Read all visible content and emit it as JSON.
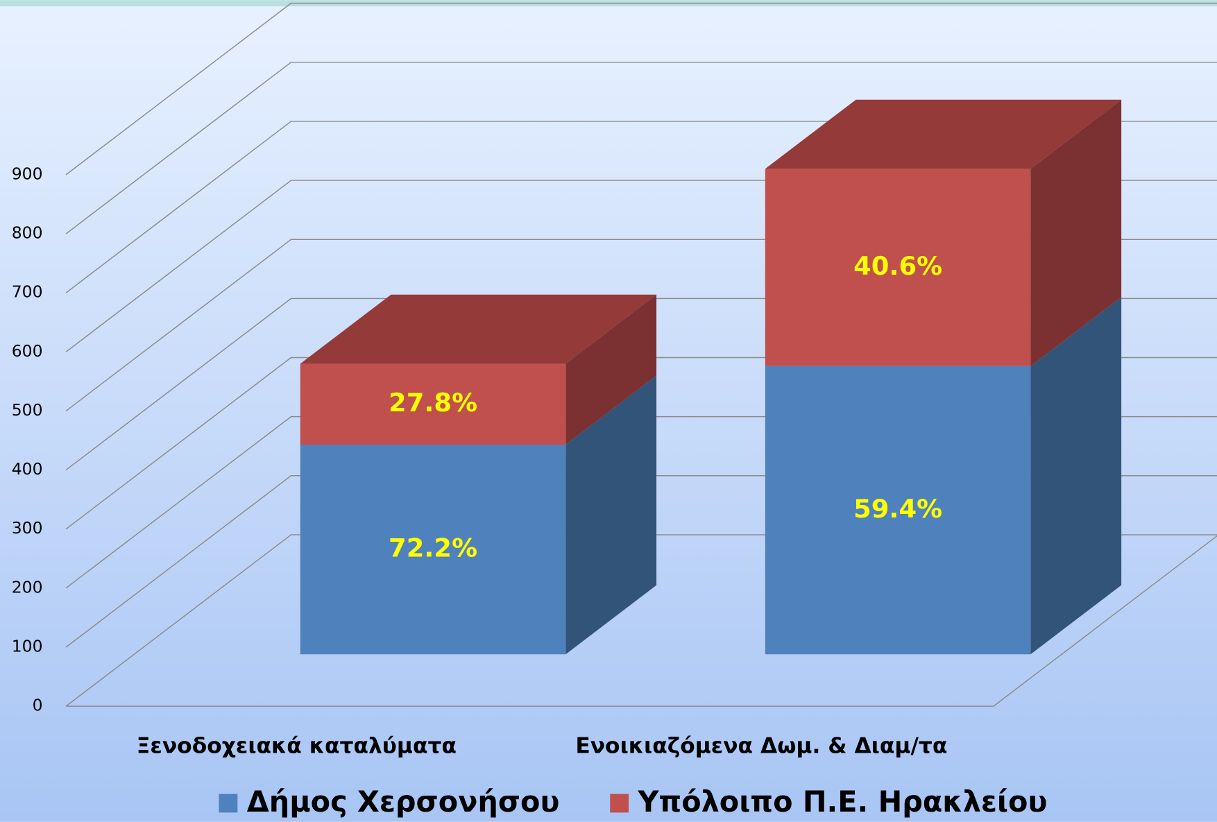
{
  "chart_data": {
    "type": "bar3d_stacked",
    "categories": [
      "Ξενοδοχειακά καταλύματα",
      "Ενοικιαζόμενα Δωμ. & Διαμ/τα"
    ],
    "series": [
      {
        "name": "Δήμος Χερσονήσου",
        "color": "#4f81bd",
        "side_color": "#335479",
        "values": [
          355,
          488
        ],
        "share_labels": [
          "72.2%",
          "59.4%"
        ]
      },
      {
        "name": "Υπόλοιπο Π.Ε. Ηρακλείου",
        "color": "#c0504d",
        "side_color": "#7b3131",
        "top_color": "#943a38",
        "values": [
          137,
          334
        ],
        "share_labels": [
          "27.8%",
          "40.6%"
        ]
      }
    ],
    "ylim": [
      0,
      900
    ],
    "yticks": [
      0,
      100,
      200,
      300,
      400,
      500,
      600,
      700,
      800,
      900
    ],
    "grid": true,
    "legend": "bottom",
    "label_color": "#ffff00"
  }
}
